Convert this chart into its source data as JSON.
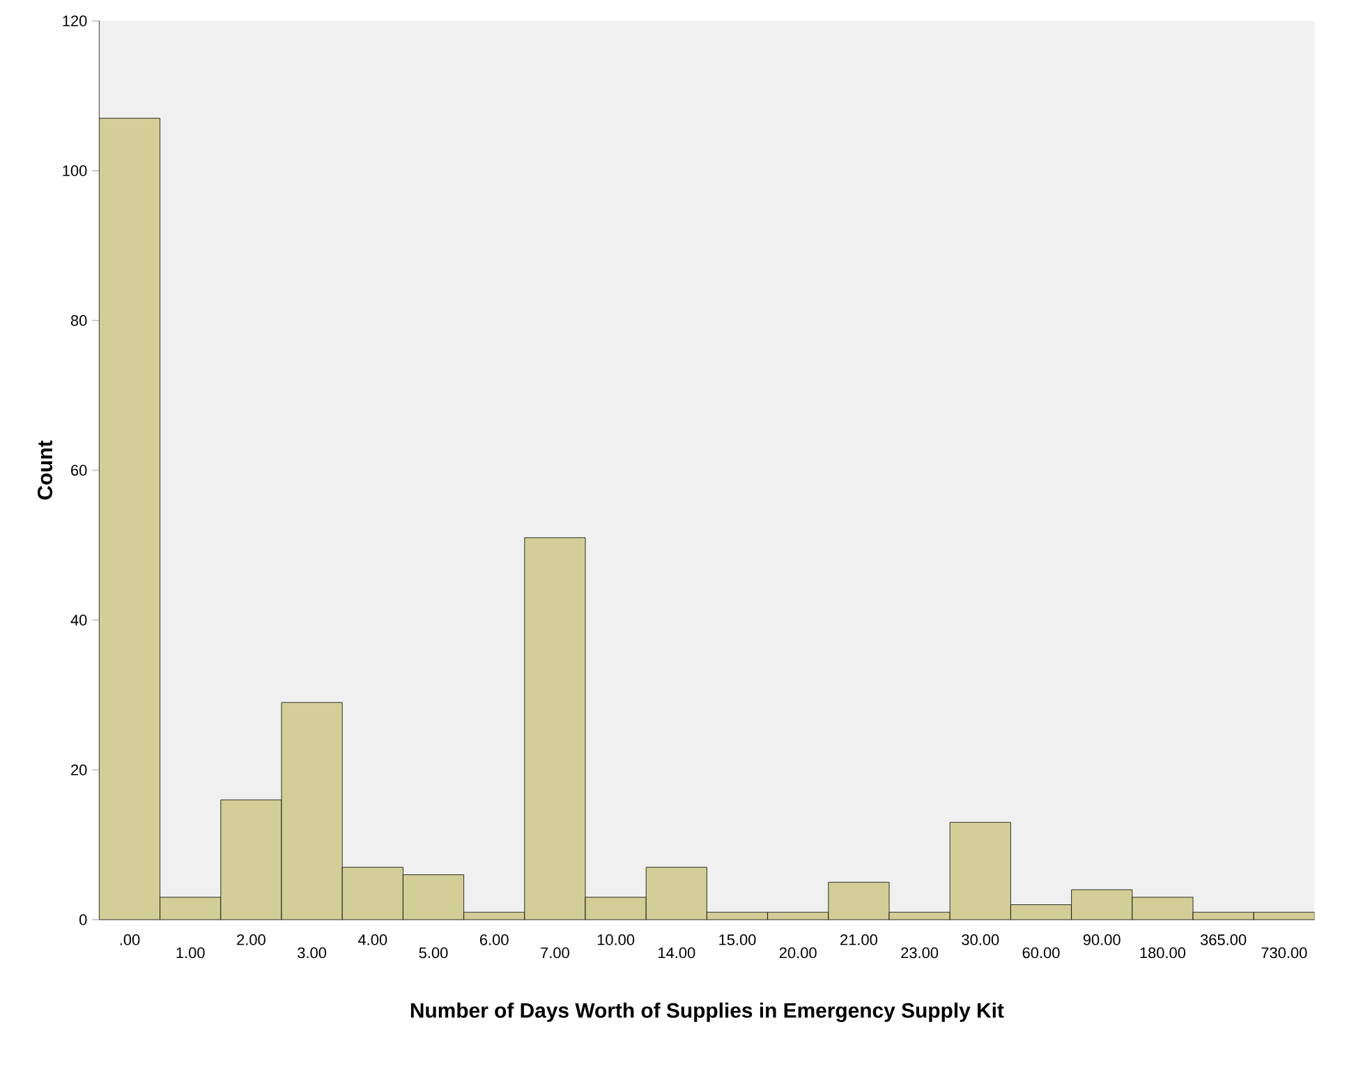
{
  "chart_data": {
    "type": "bar",
    "xlabel": "Number of Days Worth of Supplies in Emergency Supply Kit",
    "ylabel": "Count",
    "categories": [
      ".00",
      "1.00",
      "2.00",
      "3.00",
      "4.00",
      "5.00",
      "6.00",
      "7.00",
      "10.00",
      "14.00",
      "15.00",
      "20.00",
      "21.00",
      "23.00",
      "30.00",
      "60.00",
      "90.00",
      "180.00",
      "365.00",
      "730.00"
    ],
    "values": [
      107,
      3,
      16,
      29,
      7,
      6,
      1,
      51,
      3,
      7,
      1,
      1,
      5,
      1,
      13,
      2,
      4,
      3,
      1,
      1
    ],
    "color": "#d3ce97",
    "ylim": [
      0,
      120
    ],
    "yticks": [
      0,
      20,
      40,
      60,
      80,
      100,
      120
    ]
  }
}
